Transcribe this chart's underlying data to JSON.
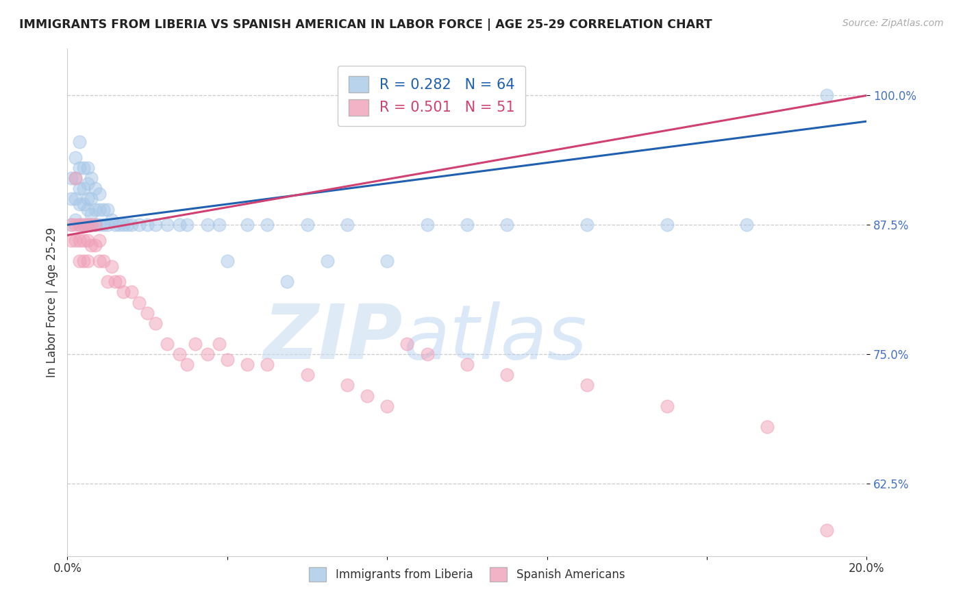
{
  "title": "IMMIGRANTS FROM LIBERIA VS SPANISH AMERICAN IN LABOR FORCE | AGE 25-29 CORRELATION CHART",
  "source": "Source: ZipAtlas.com",
  "ylabel": "In Labor Force | Age 25-29",
  "x_min": 0.0,
  "x_max": 0.2,
  "y_min": 0.555,
  "y_max": 1.045,
  "yticks": [
    0.625,
    0.75,
    0.875,
    1.0
  ],
  "ytick_labels": [
    "62.5%",
    "75.0%",
    "87.5%",
    "100.0%"
  ],
  "xticks": [
    0.0,
    0.04,
    0.08,
    0.12,
    0.16,
    0.2
  ],
  "xtick_labels": [
    "0.0%",
    "",
    "",
    "",
    "",
    "20.0%"
  ],
  "R_liberia": 0.282,
  "N_liberia": 64,
  "R_spanish": 0.501,
  "N_spanish": 51,
  "liberia_color": "#a8c8e8",
  "spanish_color": "#f0a0b8",
  "liberia_line_color": "#2060b0",
  "spanish_line_color": "#d04070",
  "liberia_x": [
    0.001,
    0.001,
    0.001,
    0.002,
    0.002,
    0.002,
    0.002,
    0.003,
    0.003,
    0.003,
    0.003,
    0.003,
    0.004,
    0.004,
    0.004,
    0.004,
    0.005,
    0.005,
    0.005,
    0.005,
    0.005,
    0.006,
    0.006,
    0.006,
    0.006,
    0.007,
    0.007,
    0.007,
    0.008,
    0.008,
    0.008,
    0.009,
    0.009,
    0.01,
    0.01,
    0.011,
    0.012,
    0.013,
    0.014,
    0.015,
    0.016,
    0.018,
    0.02,
    0.022,
    0.025,
    0.028,
    0.03,
    0.035,
    0.038,
    0.04,
    0.045,
    0.05,
    0.055,
    0.06,
    0.065,
    0.07,
    0.08,
    0.09,
    0.1,
    0.11,
    0.13,
    0.15,
    0.17,
    0.19
  ],
  "liberia_y": [
    0.875,
    0.9,
    0.92,
    0.88,
    0.9,
    0.92,
    0.94,
    0.875,
    0.895,
    0.91,
    0.93,
    0.955,
    0.875,
    0.895,
    0.91,
    0.93,
    0.875,
    0.89,
    0.9,
    0.915,
    0.93,
    0.875,
    0.885,
    0.9,
    0.92,
    0.875,
    0.89,
    0.91,
    0.875,
    0.89,
    0.905,
    0.875,
    0.89,
    0.875,
    0.89,
    0.88,
    0.875,
    0.875,
    0.875,
    0.875,
    0.875,
    0.875,
    0.875,
    0.875,
    0.875,
    0.875,
    0.875,
    0.875,
    0.875,
    0.84,
    0.875,
    0.875,
    0.82,
    0.875,
    0.84,
    0.875,
    0.84,
    0.875,
    0.875,
    0.875,
    0.875,
    0.875,
    0.875,
    1.0
  ],
  "spanish_x": [
    0.001,
    0.001,
    0.002,
    0.002,
    0.002,
    0.003,
    0.003,
    0.003,
    0.004,
    0.004,
    0.004,
    0.005,
    0.005,
    0.005,
    0.006,
    0.006,
    0.007,
    0.007,
    0.008,
    0.008,
    0.009,
    0.01,
    0.011,
    0.012,
    0.013,
    0.014,
    0.016,
    0.018,
    0.02,
    0.022,
    0.025,
    0.028,
    0.03,
    0.032,
    0.035,
    0.038,
    0.04,
    0.045,
    0.05,
    0.06,
    0.07,
    0.075,
    0.08,
    0.085,
    0.09,
    0.1,
    0.11,
    0.13,
    0.15,
    0.175,
    0.19
  ],
  "spanish_y": [
    0.875,
    0.86,
    0.92,
    0.875,
    0.86,
    0.875,
    0.86,
    0.84,
    0.875,
    0.86,
    0.84,
    0.875,
    0.86,
    0.84,
    0.875,
    0.855,
    0.875,
    0.855,
    0.86,
    0.84,
    0.84,
    0.82,
    0.835,
    0.82,
    0.82,
    0.81,
    0.81,
    0.8,
    0.79,
    0.78,
    0.76,
    0.75,
    0.74,
    0.76,
    0.75,
    0.76,
    0.745,
    0.74,
    0.74,
    0.73,
    0.72,
    0.71,
    0.7,
    0.76,
    0.75,
    0.74,
    0.73,
    0.72,
    0.7,
    0.68,
    0.58
  ]
}
